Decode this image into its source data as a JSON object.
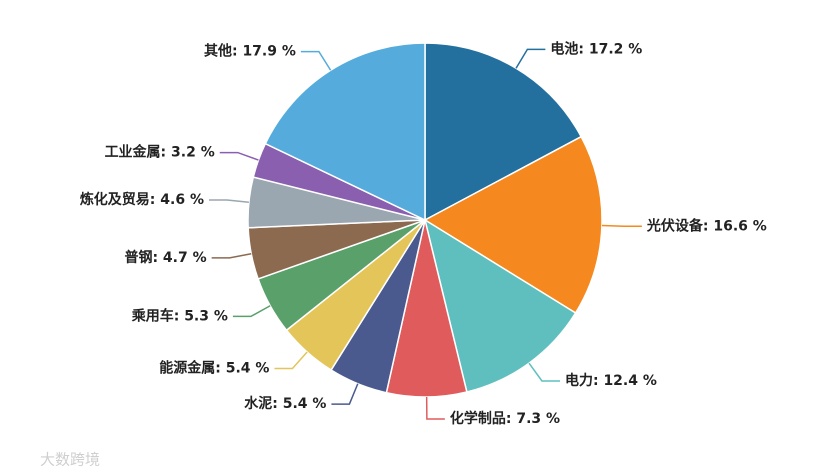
{
  "chart_data": {
    "type": "pie",
    "values": [
      17.2,
      16.6,
      12.4,
      7.3,
      5.4,
      5.4,
      5.3,
      4.7,
      4.6,
      3.2,
      17.9
    ],
    "value_labels": [
      "电池: 17.2 %",
      "光伏设备: 16.6 %",
      "电力: 12.4 %",
      "化学制品: 7.3 %",
      "水泥: 5.4 %",
      "能源金属: 5.4 %",
      "乘用车: 5.3 %",
      "普钢: 4.7 %",
      "炼化及贸易: 4.6 %",
      "工业金属: 3.2 %",
      "其他: 17.9 %"
    ],
    "colors": [
      "#23709f",
      "#f5891f",
      "#5fbfbf",
      "#e05c5c",
      "#4a5a8f",
      "#e3c55a",
      "#5aa06b",
      "#8c6a50",
      "#9aa6b0",
      "#8a5fb0",
      "#55acdc"
    ],
    "watermark": "大数跨境"
  }
}
